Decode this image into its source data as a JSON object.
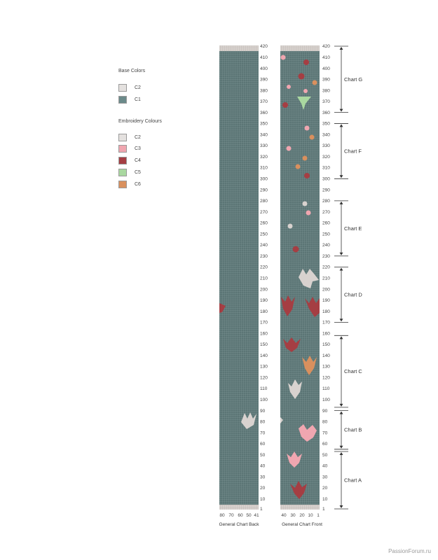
{
  "legend": {
    "base_title": "Base Colors",
    "base_items": [
      {
        "label": "C2",
        "color": "#e4e1df"
      },
      {
        "label": "C1",
        "color": "#6b8a8a"
      }
    ],
    "embroidery_title": "Embroidery Colours",
    "embroidery_items": [
      {
        "label": "C2",
        "color": "#e4e1df"
      },
      {
        "label": "C3",
        "color": "#f0a6b0"
      },
      {
        "label": "C4",
        "color": "#a53e43"
      },
      {
        "label": "C5",
        "color": "#a9d8a0"
      },
      {
        "label": "C6",
        "color": "#d9905e"
      }
    ]
  },
  "row_numbers": [
    "420",
    "410",
    "400",
    "390",
    "380",
    "370",
    "360",
    "350",
    "340",
    "330",
    "320",
    "310",
    "300",
    "290",
    "280",
    "270",
    "260",
    "250",
    "240",
    "230",
    "220",
    "210",
    "200",
    "190",
    "180",
    "170",
    "160",
    "150",
    "140",
    "130",
    "120",
    "110",
    "100",
    "90",
    "80",
    "70",
    "60",
    "50",
    "40",
    "30",
    "20",
    "10",
    "1"
  ],
  "back": {
    "caption": "General Chart Back",
    "col_labels": [
      "80",
      "70",
      "60",
      "50",
      "41"
    ]
  },
  "front": {
    "caption": "General Chart Front",
    "col_labels": [
      "40",
      "30",
      "20",
      "10",
      "1"
    ]
  },
  "sections": [
    {
      "label": "Chart G",
      "from": 360,
      "to": 420
    },
    {
      "label": "Chart F",
      "from": 300,
      "to": 350
    },
    {
      "label": "Chart E",
      "from": 230,
      "to": 280
    },
    {
      "label": "Chart D",
      "from": 170,
      "to": 220
    },
    {
      "label": "Chart C",
      "from": 93,
      "to": 158
    },
    {
      "label": "Chart B",
      "from": 55,
      "to": 90
    },
    {
      "label": "Chart A",
      "from": 1,
      "to": 53
    }
  ],
  "colors": {
    "base": "#5b7575",
    "grid": "#8aa0a0",
    "band": "#d9d3d0"
  },
  "watermark": "PassionForum.ru"
}
